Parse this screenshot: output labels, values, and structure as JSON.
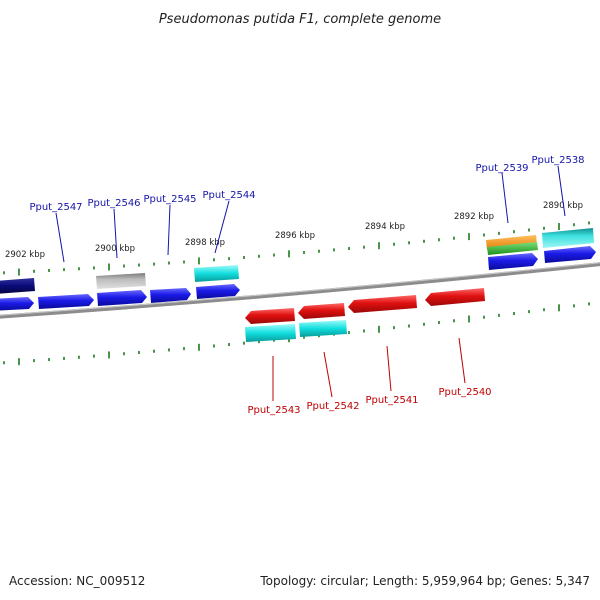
{
  "title": "Pseudomonas putida F1, complete genome",
  "footer": {
    "accession": "Accession: NC_009512",
    "summary": "Topology: circular; Length: 5,959,964 bp; Genes: 5,347"
  },
  "ticks": [
    "2902 kbp",
    "2900 kbp",
    "2898 kbp",
    "2896 kbp",
    "2894 kbp",
    "2892 kbp",
    "2890 kbp"
  ],
  "forward_genes": [
    {
      "name": "Pput_2547",
      "label": "Pput_2547",
      "color": "#1a1ae6"
    },
    {
      "name": "Pput_2546",
      "label": "Pput_2546",
      "color": "#1a1ae6"
    },
    {
      "name": "Pput_2545",
      "label": "Pput_2545",
      "color": "#1a1ae6"
    },
    {
      "name": "Pput_2544",
      "label": "Pput_2544",
      "color": "#1a1ae6"
    },
    {
      "name": "Pput_2539",
      "label": "Pput_2539",
      "color": "#1a1ae6"
    },
    {
      "name": "Pput_2538",
      "label": "Pput_2538",
      "color": "#1a1ae6"
    }
  ],
  "reverse_genes": [
    {
      "name": "Pput_2543",
      "label": "Pput_2543",
      "color": "#e01010"
    },
    {
      "name": "Pput_2542",
      "label": "Pput_2542",
      "color": "#e01010"
    },
    {
      "name": "Pput_2541",
      "label": "Pput_2541",
      "color": "#e01010"
    },
    {
      "name": "Pput_2540",
      "label": "Pput_2540",
      "color": "#e01010"
    }
  ],
  "colors": {
    "forward_cds": "#1a1ae6",
    "reverse_cds": "#e01010",
    "feature_cyan": "#12dede",
    "feature_gray": "#b4b4b4",
    "feature_navy": "#0a0a78",
    "feature_orange": "#f08c0a",
    "feature_green": "#2ab02a",
    "tick_green": "#1a7a1a",
    "backbone": "#8c8c8c"
  }
}
